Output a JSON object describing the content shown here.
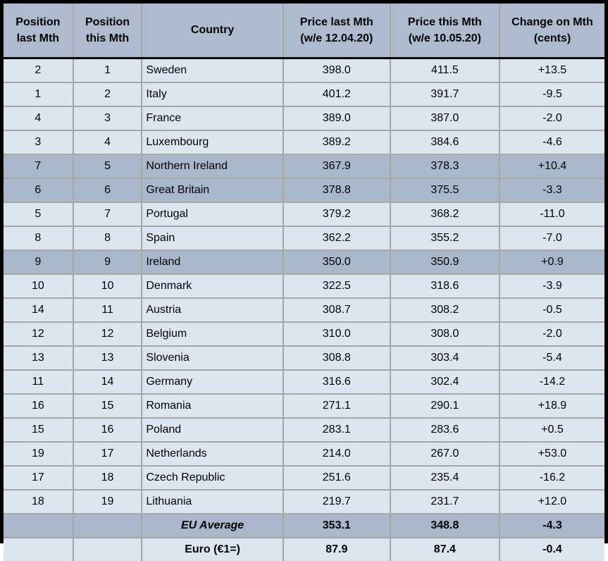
{
  "chart_data": {
    "type": "table",
    "columns": [
      "Position\nlast Mth",
      "Position\nthis Mth",
      "Country",
      "Price last Mth\n(w/e 12.04.20)",
      "Price this Mth\n(w/e 10.05.20)",
      "Change on Mth\n(cents)"
    ],
    "rows": [
      {
        "pos_last": "2",
        "pos_this": "1",
        "country": "Sweden",
        "price_last": "398.0",
        "price_this": "411.5",
        "change": "+13.5",
        "highlight": false
      },
      {
        "pos_last": "1",
        "pos_this": "2",
        "country": "Italy",
        "price_last": "401.2",
        "price_this": "391.7",
        "change": "-9.5",
        "highlight": false
      },
      {
        "pos_last": "4",
        "pos_this": "3",
        "country": "France",
        "price_last": "389.0",
        "price_this": "387.0",
        "change": "-2.0",
        "highlight": false
      },
      {
        "pos_last": "3",
        "pos_this": "4",
        "country": "Luxembourg",
        "price_last": "389.2",
        "price_this": "384.6",
        "change": "-4.6",
        "highlight": false
      },
      {
        "pos_last": "7",
        "pos_this": "5",
        "country": "Northern Ireland",
        "price_last": "367.9",
        "price_this": "378.3",
        "change": "+10.4",
        "highlight": true
      },
      {
        "pos_last": "6",
        "pos_this": "6",
        "country": "Great Britain",
        "price_last": "378.8",
        "price_this": "375.5",
        "change": "-3.3",
        "highlight": true
      },
      {
        "pos_last": "5",
        "pos_this": "7",
        "country": "Portugal",
        "price_last": "379.2",
        "price_this": "368.2",
        "change": "-11.0",
        "highlight": false
      },
      {
        "pos_last": "8",
        "pos_this": "8",
        "country": "Spain",
        "price_last": "362.2",
        "price_this": "355.2",
        "change": "-7.0",
        "highlight": false
      },
      {
        "pos_last": "9",
        "pos_this": "9",
        "country": "Ireland",
        "price_last": "350.0",
        "price_this": "350.9",
        "change": "+0.9",
        "highlight": true
      },
      {
        "pos_last": "10",
        "pos_this": "10",
        "country": "Denmark",
        "price_last": "322.5",
        "price_this": "318.6",
        "change": "-3.9",
        "highlight": false
      },
      {
        "pos_last": "14",
        "pos_this": "11",
        "country": "Austria",
        "price_last": "308.7",
        "price_this": "308.2",
        "change": "-0.5",
        "highlight": false
      },
      {
        "pos_last": "12",
        "pos_this": "12",
        "country": "Belgium",
        "price_last": "310.0",
        "price_this": "308.0",
        "change": "-2.0",
        "highlight": false
      },
      {
        "pos_last": "13",
        "pos_this": "13",
        "country": "Slovenia",
        "price_last": "308.8",
        "price_this": "303.4",
        "change": "-5.4",
        "highlight": false
      },
      {
        "pos_last": "11",
        "pos_this": "14",
        "country": "Germany",
        "price_last": "316.6",
        "price_this": "302.4",
        "change": "-14.2",
        "highlight": false
      },
      {
        "pos_last": "16",
        "pos_this": "15",
        "country": "Romania",
        "price_last": "271.1",
        "price_this": "290.1",
        "change": "+18.9",
        "highlight": false
      },
      {
        "pos_last": "15",
        "pos_this": "16",
        "country": "Poland",
        "price_last": "283.1",
        "price_this": "283.6",
        "change": "+0.5",
        "highlight": false
      },
      {
        "pos_last": "19",
        "pos_this": "17",
        "country": "Netherlands",
        "price_last": "214.0",
        "price_this": "267.0",
        "change": "+53.0",
        "highlight": false
      },
      {
        "pos_last": "17",
        "pos_this": "18",
        "country": "Czech Republic",
        "price_last": "251.6",
        "price_this": "235.4",
        "change": "-16.2",
        "highlight": false
      },
      {
        "pos_last": "18",
        "pos_this": "19",
        "country": "Lithuania",
        "price_last": "219.7",
        "price_this": "231.7",
        "change": "+12.0",
        "highlight": false
      }
    ],
    "summary_rows": [
      {
        "label": "EU Average",
        "style": "eu-average",
        "price_last": "353.1",
        "price_this": "348.8",
        "change": "-4.3",
        "highlight": true
      },
      {
        "label": "Euro (€1=)",
        "style": "euro",
        "price_last": "87.9",
        "price_this": "87.4",
        "change": "-0.4",
        "highlight": false
      }
    ],
    "colors": {
      "header_bg": "#aebbce",
      "row_bg": "#dce6f1",
      "highlight_bg": "#a9b7ca",
      "grid_line": "#a6a6a6",
      "outer_border": "#000000"
    }
  }
}
